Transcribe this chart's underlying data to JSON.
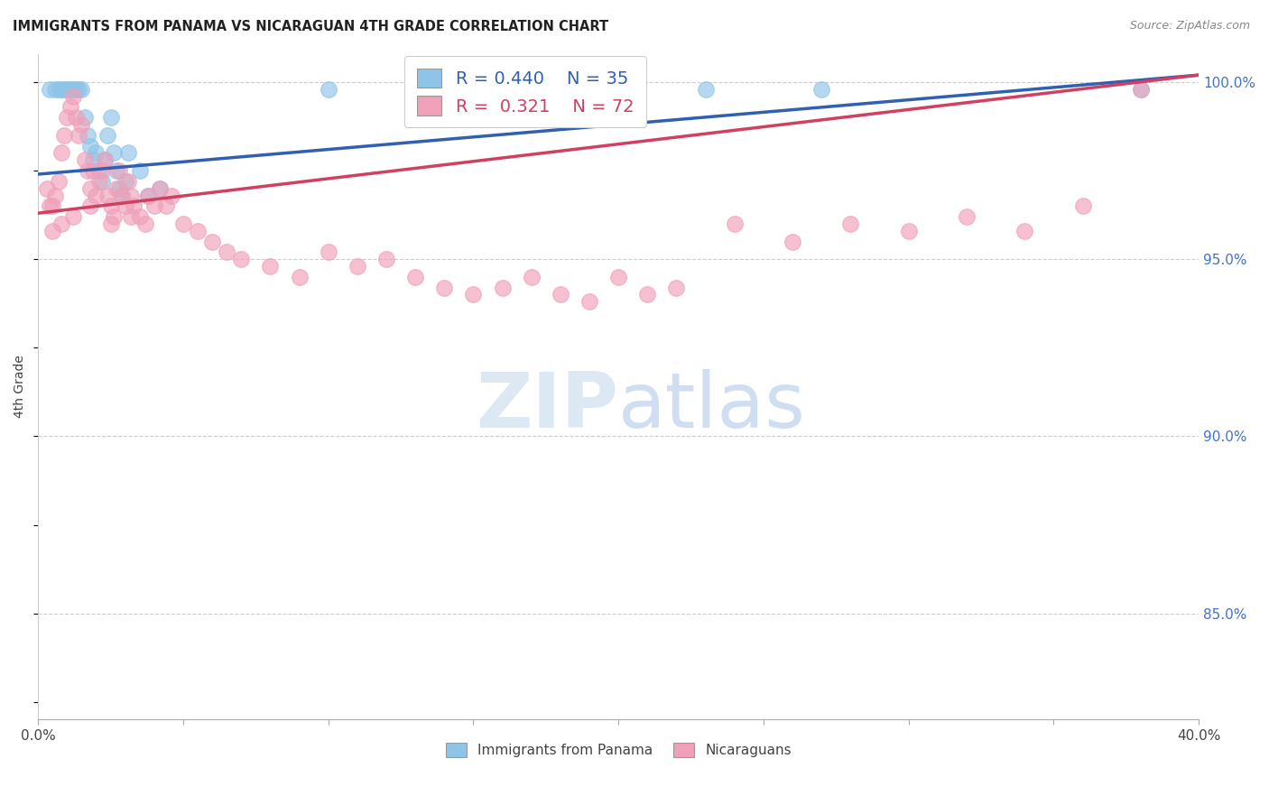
{
  "title": "IMMIGRANTS FROM PANAMA VS NICARAGUAN 4TH GRADE CORRELATION CHART",
  "source": "Source: ZipAtlas.com",
  "ylabel": "4th Grade",
  "ylabel_right_ticks": [
    "100.0%",
    "95.0%",
    "90.0%",
    "85.0%"
  ],
  "ylabel_right_vals": [
    1.0,
    0.95,
    0.9,
    0.85
  ],
  "xmin": 0.0,
  "xmax": 0.4,
  "ymin": 0.82,
  "ymax": 1.008,
  "legend_blue_r": "0.440",
  "legend_blue_n": "35",
  "legend_pink_r": "0.321",
  "legend_pink_n": "72",
  "blue_color": "#8ec4e8",
  "pink_color": "#f0a0b8",
  "blue_line_color": "#3060b0",
  "pink_line_color": "#d04060",
  "blue_line_x0": 0.0,
  "blue_line_y0": 0.974,
  "blue_line_x1": 0.4,
  "blue_line_y1": 1.002,
  "pink_line_x0": 0.0,
  "pink_line_y0": 0.963,
  "pink_line_x1": 0.4,
  "pink_line_y1": 1.002,
  "blue_points_x": [
    0.004,
    0.006,
    0.007,
    0.008,
    0.009,
    0.01,
    0.011,
    0.012,
    0.013,
    0.014,
    0.015,
    0.016,
    0.017,
    0.018,
    0.019,
    0.02,
    0.021,
    0.022,
    0.023,
    0.024,
    0.025,
    0.026,
    0.027,
    0.028,
    0.029,
    0.03,
    0.031,
    0.035,
    0.038,
    0.042,
    0.1,
    0.165,
    0.23,
    0.27,
    0.38
  ],
  "blue_points_y": [
    0.998,
    0.998,
    0.998,
    0.998,
    0.998,
    0.998,
    0.998,
    0.998,
    0.998,
    0.998,
    0.998,
    0.99,
    0.985,
    0.982,
    0.978,
    0.98,
    0.975,
    0.972,
    0.978,
    0.985,
    0.99,
    0.98,
    0.975,
    0.97,
    0.968,
    0.972,
    0.98,
    0.975,
    0.968,
    0.97,
    0.998,
    0.998,
    0.998,
    0.998,
    0.998
  ],
  "pink_points_x": [
    0.003,
    0.004,
    0.005,
    0.006,
    0.007,
    0.008,
    0.009,
    0.01,
    0.011,
    0.012,
    0.013,
    0.014,
    0.015,
    0.016,
    0.017,
    0.018,
    0.019,
    0.02,
    0.021,
    0.022,
    0.023,
    0.024,
    0.025,
    0.026,
    0.027,
    0.028,
    0.029,
    0.03,
    0.031,
    0.032,
    0.033,
    0.035,
    0.037,
    0.038,
    0.04,
    0.042,
    0.044,
    0.046,
    0.05,
    0.055,
    0.06,
    0.065,
    0.07,
    0.08,
    0.09,
    0.1,
    0.11,
    0.12,
    0.13,
    0.14,
    0.15,
    0.16,
    0.17,
    0.18,
    0.19,
    0.2,
    0.21,
    0.22,
    0.24,
    0.26,
    0.28,
    0.3,
    0.32,
    0.34,
    0.36,
    0.38,
    0.005,
    0.008,
    0.012,
    0.018,
    0.025,
    0.032
  ],
  "pink_points_y": [
    0.97,
    0.965,
    0.965,
    0.968,
    0.972,
    0.98,
    0.985,
    0.99,
    0.993,
    0.996,
    0.99,
    0.985,
    0.988,
    0.978,
    0.975,
    0.97,
    0.975,
    0.968,
    0.972,
    0.975,
    0.978,
    0.968,
    0.965,
    0.962,
    0.97,
    0.975,
    0.968,
    0.965,
    0.972,
    0.968,
    0.965,
    0.962,
    0.96,
    0.968,
    0.965,
    0.97,
    0.965,
    0.968,
    0.96,
    0.958,
    0.955,
    0.952,
    0.95,
    0.948,
    0.945,
    0.952,
    0.948,
    0.95,
    0.945,
    0.942,
    0.94,
    0.942,
    0.945,
    0.94,
    0.938,
    0.945,
    0.94,
    0.942,
    0.96,
    0.955,
    0.96,
    0.958,
    0.962,
    0.958,
    0.965,
    0.998,
    0.958,
    0.96,
    0.962,
    0.965,
    0.96,
    0.962
  ]
}
